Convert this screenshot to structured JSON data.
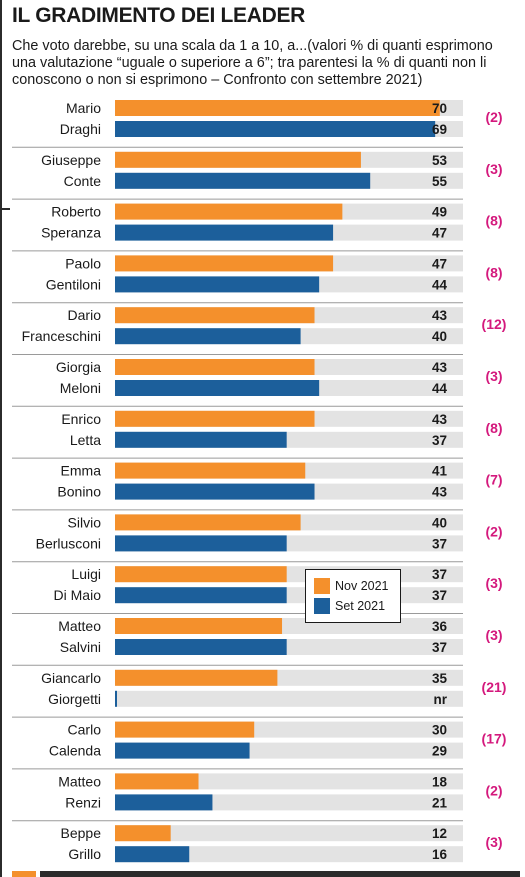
{
  "title": "IL GRADIMENTO DEI LEADER",
  "subtitle": "Che voto darebbe, su una scala da 1 a 10, a...(valori % di quanti esprimono una valutazione “uguale o superiore a 6”; tra parentesi la % di quanti non li conoscono o non si esprimono – Confronto con settembre 2021)",
  "colors": {
    "nov": "#f4902c",
    "set": "#1c5f9b",
    "track": "#e3e3e3",
    "note": "#d4197d",
    "separator": "#9a9a9a"
  },
  "chart_data": {
    "type": "bar",
    "orientation": "horizontal",
    "categories": [
      "Mario Draghi",
      "Giuseppe Conte",
      "Roberto Speranza",
      "Paolo Gentiloni",
      "Dario Franceschini",
      "Giorgia Meloni",
      "Enrico Letta",
      "Emma Bonino",
      "Silvio Berlusconi",
      "Luigi Di Maio",
      "Matteo Salvini",
      "Giancarlo Giorgetti",
      "Carlo Calenda",
      "Matteo Renzi",
      "Beppe Grillo"
    ],
    "series": [
      {
        "name": "Nov 2021",
        "values": [
          70,
          53,
          49,
          47,
          43,
          43,
          43,
          41,
          40,
          37,
          36,
          35,
          30,
          18,
          12
        ],
        "labels": [
          "70",
          "53",
          "49",
          "47",
          "43",
          "43",
          "43",
          "41",
          "40",
          "37",
          "36",
          "35",
          "30",
          "18",
          "12"
        ]
      },
      {
        "name": "Set 2021",
        "values": [
          69,
          55,
          47,
          44,
          40,
          44,
          37,
          43,
          37,
          37,
          37,
          null,
          29,
          21,
          16
        ],
        "labels": [
          "69",
          "55",
          "47",
          "44",
          "40",
          "44",
          "37",
          "43",
          "37",
          "37",
          "37",
          "nr",
          "29",
          "21",
          "16"
        ]
      }
    ],
    "notes": [
      "(2)",
      "(3)",
      "(8)",
      "(8)",
      "(12)",
      "(3)",
      "(8)",
      "(7)",
      "(2)",
      "(3)",
      "(3)",
      "(21)",
      "(17)",
      "(2)",
      "(3)"
    ],
    "xlim": [
      0,
      75
    ],
    "legend": "inside-center"
  },
  "leaders": [
    {
      "first": "Mario",
      "last": "Draghi"
    },
    {
      "first": "Giuseppe",
      "last": "Conte"
    },
    {
      "first": "Roberto",
      "last": "Speranza"
    },
    {
      "first": "Paolo",
      "last": "Gentiloni"
    },
    {
      "first": "Dario",
      "last": "Franceschini"
    },
    {
      "first": "Giorgia",
      "last": "Meloni"
    },
    {
      "first": "Enrico",
      "last": "Letta"
    },
    {
      "first": "Emma",
      "last": "Bonino"
    },
    {
      "first": "Silvio",
      "last": "Berlusconi"
    },
    {
      "first": "Luigi",
      "last": "Di Maio"
    },
    {
      "first": "Matteo",
      "last": "Salvini"
    },
    {
      "first": "Giancarlo",
      "last": "Giorgetti"
    },
    {
      "first": "Carlo",
      "last": "Calenda"
    },
    {
      "first": "Matteo",
      "last": "Renzi"
    },
    {
      "first": "Beppe",
      "last": "Grillo"
    }
  ]
}
